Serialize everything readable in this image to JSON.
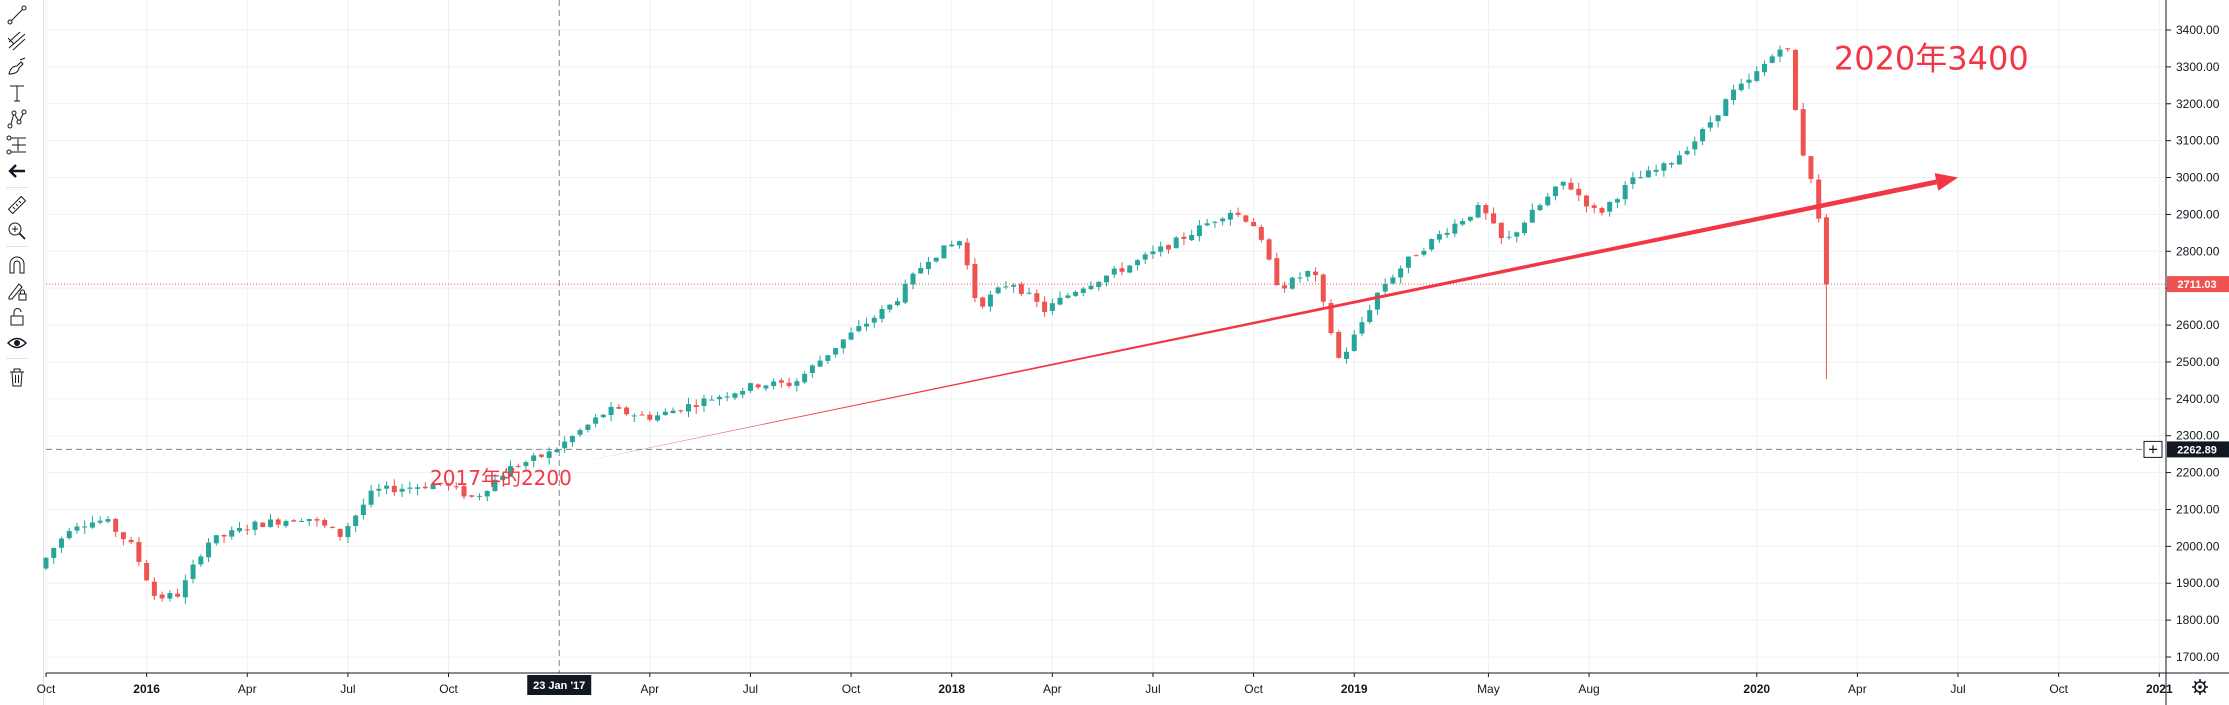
{
  "chart_data": {
    "type": "candlestick",
    "title": "",
    "y_ticks": [
      1700,
      1800,
      1900,
      2000,
      2100,
      2200,
      2300,
      2400,
      2500,
      2600,
      2700,
      2800,
      2900,
      3000,
      3100,
      3200,
      3300,
      3400
    ],
    "y_tick_suffix": ".00",
    "ylim": [
      1650,
      3420
    ],
    "x_axis": {
      "range_months": [
        0,
        63.2
      ],
      "origin": "2015-10",
      "ticks": [
        {
          "label": "Oct",
          "m": 0,
          "emph": false
        },
        {
          "label": "2016",
          "m": 3,
          "emph": true
        },
        {
          "label": "Apr",
          "m": 6,
          "emph": false
        },
        {
          "label": "Jul",
          "m": 9,
          "emph": false
        },
        {
          "label": "Oct",
          "m": 12,
          "emph": false
        },
        {
          "label": "Apr",
          "m": 18,
          "emph": false
        },
        {
          "label": "Jul",
          "m": 21,
          "emph": false
        },
        {
          "label": "Oct",
          "m": 24,
          "emph": false
        },
        {
          "label": "2018",
          "m": 27,
          "emph": true
        },
        {
          "label": "Apr",
          "m": 30,
          "emph": false
        },
        {
          "label": "Jul",
          "m": 33,
          "emph": false
        },
        {
          "label": "Oct",
          "m": 36,
          "emph": false
        },
        {
          "label": "2019",
          "m": 39,
          "emph": true
        },
        {
          "label": "May",
          "m": 43,
          "emph": false
        },
        {
          "label": "Aug",
          "m": 46,
          "emph": false
        },
        {
          "label": "2020",
          "m": 51,
          "emph": true
        },
        {
          "label": "Apr",
          "m": 54,
          "emph": false
        },
        {
          "label": "Jul",
          "m": 57,
          "emph": false
        },
        {
          "label": "Oct",
          "m": 60,
          "emph": false
        },
        {
          "label": "2021",
          "m": 63,
          "emph": true
        }
      ]
    },
    "trend_points": [
      [
        0,
        1940
      ],
      [
        1,
        2060
      ],
      [
        2,
        2070
      ],
      [
        2.8,
        2000
      ],
      [
        3.5,
        1860
      ],
      [
        4.2,
        1870
      ],
      [
        5,
        2010
      ],
      [
        6.5,
        2060
      ],
      [
        8,
        2080
      ],
      [
        9,
        2030
      ],
      [
        10,
        2150
      ],
      [
        12,
        2170
      ],
      [
        13,
        2130
      ],
      [
        14,
        2210
      ],
      [
        15.3,
        2255
      ],
      [
        17,
        2370
      ],
      [
        18.3,
        2350
      ],
      [
        20,
        2400
      ],
      [
        21.5,
        2440
      ],
      [
        22.5,
        2440
      ],
      [
        24,
        2560
      ],
      [
        25.5,
        2660
      ],
      [
        26.5,
        2780
      ],
      [
        27.5,
        2830
      ],
      [
        28,
        2650
      ],
      [
        29,
        2720
      ],
      [
        30,
        2640
      ],
      [
        31,
        2700
      ],
      [
        32.5,
        2760
      ],
      [
        34,
        2830
      ],
      [
        35.5,
        2910
      ],
      [
        36.2,
        2880
      ],
      [
        37,
        2700
      ],
      [
        38,
        2750
      ],
      [
        38.8,
        2500
      ],
      [
        39.3,
        2580
      ],
      [
        40,
        2700
      ],
      [
        41,
        2790
      ],
      [
        42,
        2860
      ],
      [
        43,
        2920
      ],
      [
        43.7,
        2820
      ],
      [
        44.5,
        2900
      ],
      [
        45.5,
        2990
      ],
      [
        46.5,
        2900
      ],
      [
        47.5,
        2990
      ],
      [
        48.5,
        3030
      ],
      [
        49.5,
        3110
      ],
      [
        50.5,
        3230
      ],
      [
        51,
        3260
      ],
      [
        51.7,
        3330
      ],
      [
        52.1,
        3380
      ],
      [
        52.5,
        3100
      ],
      [
        53,
        2950
      ],
      [
        53.3,
        2710
      ]
    ],
    "trend_line": {
      "from": [
        16,
        2230
      ],
      "to": [
        57,
        3000
      ]
    },
    "crosshair": {
      "m": 15.3,
      "price": 2262.89,
      "x_label": "23 Jan '17",
      "y_label": "2262.89"
    },
    "last_price": {
      "price": 2711.03,
      "label": "2711.03"
    },
    "annotations": [
      {
        "text": "2017年的2200",
        "m": 19.2,
        "price": 2193
      },
      {
        "text": "2020年3400",
        "m": 53,
        "price": 3325
      }
    ],
    "colors": {
      "up": "#26a69a",
      "down": "#ef5350",
      "arrow": "#f23645",
      "text": "#f23645",
      "grid": "#eef0f4"
    }
  },
  "toolbar": {
    "icons": [
      "trend-line-icon",
      "fib-icon",
      "brush-icon",
      "text-icon",
      "pattern-icon",
      "measure-range-icon",
      "back-arrow-icon",
      "ruler-icon",
      "zoom-in-icon",
      "magnet-icon",
      "lock-pencil-icon",
      "lock-icon",
      "eye-icon",
      "trash-icon"
    ]
  }
}
